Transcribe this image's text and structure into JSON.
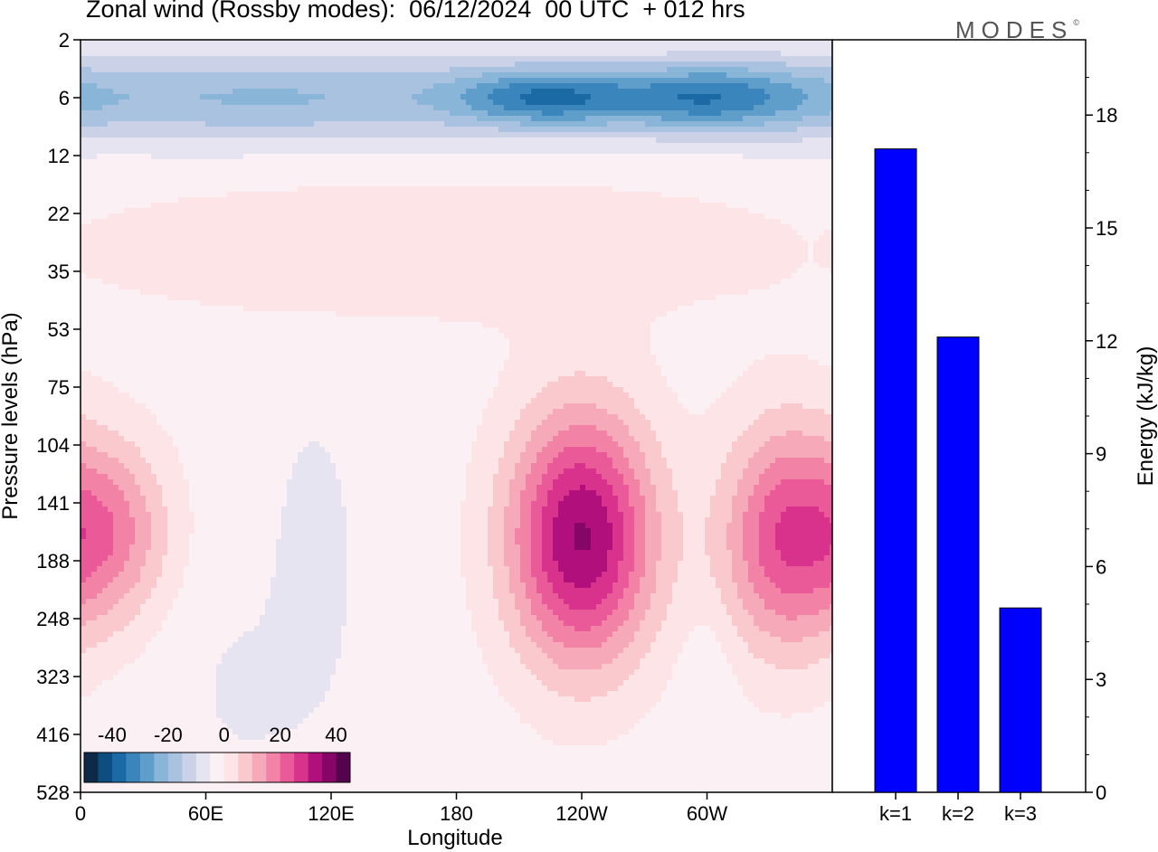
{
  "title": "Zonal wind (Rossby modes):  06/12/2024  00 UTC  + 012 hrs",
  "logo_text": "MODES",
  "logo_mark": "©",
  "chart_data": [
    {
      "type": "heatmap",
      "title": "Zonal wind (Rossby modes):  06/12/2024  00 UTC  + 012 hrs",
      "xlabel": "Longitude",
      "ylabel": "Pressure levels (hPa)",
      "x_ticks": [
        "0",
        "60E",
        "120E",
        "180",
        "120W",
        "60W"
      ],
      "y_ticks": [
        "2",
        "6",
        "12",
        "22",
        "35",
        "53",
        "75",
        "104",
        "141",
        "188",
        "248",
        "323",
        "416",
        "528"
      ],
      "colorbar": {
        "tick_labels": [
          "-40",
          "-20",
          "0",
          "20",
          "40"
        ],
        "colors": [
          "#0d2a4a",
          "#0e4d80",
          "#1b6aa6",
          "#3a86bc",
          "#5f9ecb",
          "#89b5d8",
          "#a8c2df",
          "#cbd2e7",
          "#e6e4f0",
          "#fbf0f3",
          "#fde4e6",
          "#f9c9cd",
          "#f6a9b8",
          "#f283a7",
          "#ea5a98",
          "#d8328d",
          "#b00f7c",
          "#860667",
          "#54034f"
        ]
      },
      "series": [
        {
          "name": "zonal wind",
          "blobs": [
            {
              "lon": 90,
              "level_index": 1.0,
              "value": -18,
              "spread_lon": 180,
              "spread_level": 0.8
            },
            {
              "lon": 220,
              "level_index": 1.0,
              "value": -20,
              "spread_lon": 40,
              "spread_level": 0.5
            },
            {
              "lon": 295,
              "level_index": 1.0,
              "value": -24,
              "spread_lon": 55,
              "spread_level": 0.6
            },
            {
              "lon": 170,
              "level_index": 3.6,
              "value": 6,
              "spread_lon": 190,
              "spread_level": 1.3
            },
            {
              "lon": 15,
              "level_index": 8.5,
              "value": 18,
              "spread_lon": 28,
              "spread_level": 1.6
            },
            {
              "lon": 240,
              "level_index": 8.6,
              "value": 38,
              "spread_lon": 35,
              "spread_level": 2.2
            },
            {
              "lon": 337,
              "level_index": 8.6,
              "value": 26,
              "spread_lon": 30,
              "spread_level": 2.0
            },
            {
              "lon": 112,
              "level_index": 8.8,
              "value": -5,
              "spread_lon": 18,
              "spread_level": 2.2
            },
            {
              "lon": 80,
              "level_index": 11.2,
              "value": -3,
              "spread_lon": 40,
              "spread_level": 2.0
            },
            {
              "lon": 300,
              "level_index": 11.0,
              "value": -3,
              "spread_lon": 12,
              "spread_level": 1.2
            }
          ]
        }
      ]
    },
    {
      "type": "bar",
      "categories": [
        "k=1",
        "k=2",
        "k=3"
      ],
      "values": [
        17.1,
        12.1,
        4.9
      ],
      "ylabel": "Energy (kJ/kg)",
      "ylim": [
        0,
        20
      ],
      "y_ticks": [
        "0",
        "3",
        "6",
        "9",
        "12",
        "15",
        "18"
      ],
      "bar_color": "#0000ff"
    }
  ]
}
